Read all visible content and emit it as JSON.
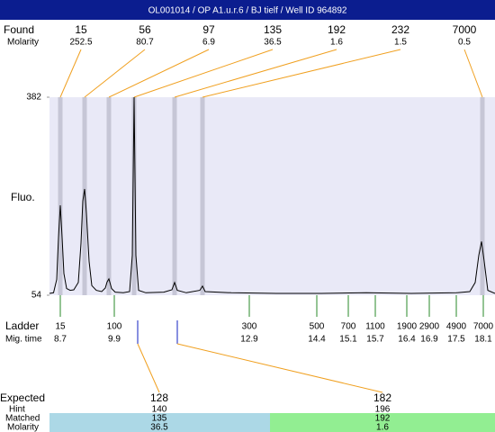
{
  "title": "OL001014 / OP A1.u.r.6 / BJ tielf / Well ID 964892",
  "row_labels": {
    "found": "Found",
    "found_molarity": "Molarity",
    "fluo": "Fluo.",
    "ladder": "Ladder",
    "mig_time": "Mig. time",
    "expected": "Expected",
    "hint": "Hint",
    "matched": "Matched",
    "matched_molarity": "Molarity"
  },
  "chart_data": {
    "type": "line",
    "color": "#000000",
    "x": [
      8.46,
      8.55,
      8.62,
      8.66,
      8.7,
      8.74,
      8.78,
      8.84,
      8.92,
      9.0,
      9.1,
      9.16,
      9.2,
      9.24,
      9.28,
      9.34,
      9.4,
      9.5,
      9.62,
      9.7,
      9.74,
      9.78,
      9.84,
      9.92,
      10.1,
      10.24,
      10.3,
      10.34,
      10.38,
      10.44,
      10.6,
      11.0,
      11.18,
      11.24,
      11.3,
      11.5,
      11.8,
      11.86,
      11.92,
      12.5,
      13.5,
      14.5,
      15.5,
      16.5,
      17.5,
      17.8,
      17.92,
      18.0,
      18.06,
      18.12,
      18.2,
      18.36
    ],
    "values": [
      57,
      58,
      80,
      150,
      203,
      150,
      90,
      65,
      62,
      63,
      75,
      140,
      210,
      230,
      190,
      110,
      70,
      62,
      60,
      66,
      76,
      81,
      65,
      59,
      58,
      60,
      120,
      382,
      120,
      62,
      58,
      59,
      63,
      75,
      62,
      58,
      62,
      69,
      60,
      58,
      57,
      57,
      58,
      57,
      58,
      60,
      75,
      120,
      143,
      110,
      62,
      57
    ],
    "xlim": [
      8.46,
      18.36
    ],
    "ylim": [
      54,
      382
    ],
    "yticks": [
      54,
      382
    ]
  },
  "found": [
    {
      "size": 15,
      "molarity": 252.5,
      "time": 8.7
    },
    {
      "size": 56,
      "molarity": 80.7,
      "time": 9.24
    },
    {
      "size": 97,
      "molarity": 6.9,
      "time": 9.78
    },
    {
      "size": 135,
      "molarity": 36.5,
      "time": 10.34
    },
    {
      "size": 192,
      "molarity": 1.6,
      "time": 11.24
    },
    {
      "size": 232,
      "molarity": 1.5,
      "time": 11.86
    },
    {
      "size": 7000,
      "molarity": 0.5,
      "time": 18.08
    }
  ],
  "ladder": [
    {
      "size": 15,
      "time": 8.7
    },
    {
      "size": 100,
      "time": 9.9
    },
    {
      "size": 300,
      "time": 12.9
    },
    {
      "size": 500,
      "time": 14.4
    },
    {
      "size": 700,
      "time": 15.1
    },
    {
      "size": 1100,
      "time": 15.7
    },
    {
      "size": 1900,
      "time": 16.4
    },
    {
      "size": 2900,
      "time": 16.9
    },
    {
      "size": 4900,
      "time": 17.5
    },
    {
      "size": 7000,
      "time": 18.1
    }
  ],
  "expected": [
    {
      "size": 128,
      "hint": 140,
      "matched": 135,
      "molarity": 36.5,
      "time": 10.42
    },
    {
      "size": 182,
      "hint": 196,
      "matched": 192,
      "molarity": 1.6,
      "time": 11.3
    }
  ]
}
